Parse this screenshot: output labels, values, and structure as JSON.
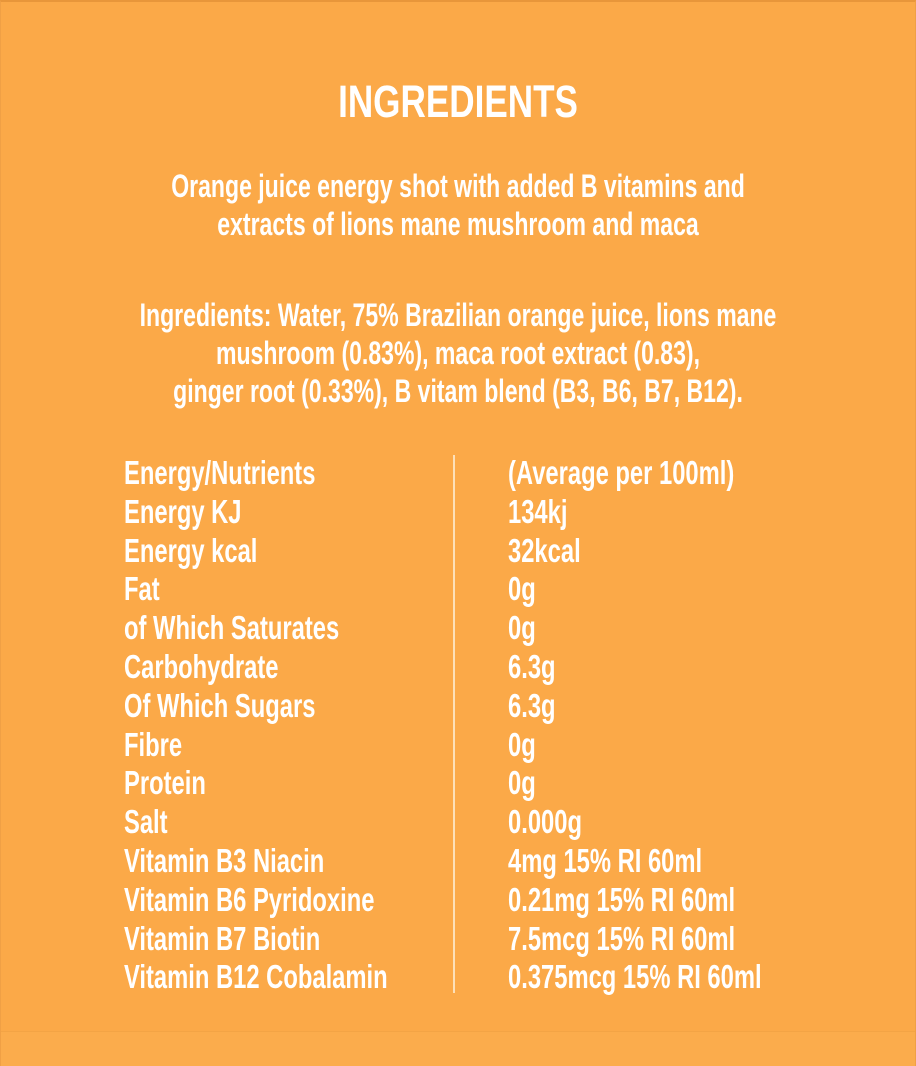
{
  "title": "INGREDIENTS",
  "description_lines": [
    "Orange juice energy shot with added B vitamins and",
    "extracts of lions mane mushroom and maca"
  ],
  "ingredients_lines": [
    "Ingredients: Water, 75% Brazilian orange juice, lions mane",
    "mushroom (0.83%), maca root extract (0.83),",
    "ginger root (0.33%), B vitam blend (B3, B6, B7, B12)."
  ],
  "nutrition": {
    "header": {
      "nutrient": "Energy/Nutrients",
      "value": "(Average per 100ml)"
    },
    "rows": [
      {
        "nutrient": "Energy KJ",
        "value": "134kj"
      },
      {
        "nutrient": "Energy kcal",
        "value": "32kcal"
      },
      {
        "nutrient": "Fat",
        "value": "0g"
      },
      {
        "nutrient": "of Which Saturates",
        "value": "0g"
      },
      {
        "nutrient": "Carbohydrate",
        "value": "6.3g"
      },
      {
        "nutrient": "Of Which Sugars",
        "value": "6.3g"
      },
      {
        "nutrient": "Fibre",
        "value": "0g"
      },
      {
        "nutrient": "Protein",
        "value": "0g"
      },
      {
        "nutrient": "Salt",
        "value": "0.000g"
      },
      {
        "nutrient": "Vitamin B3 Niacin",
        "value": "4mg 15% RI 60ml"
      },
      {
        "nutrient": "Vitamin B6 Pyridoxine",
        "value": "0.21mg 15% RI 60ml"
      },
      {
        "nutrient": "Vitamin B7 Biotin",
        "value": "7.5mcg 15% RI 60ml"
      },
      {
        "nutrient": "Vitamin B12 Cobalamin",
        "value": "0.375mcg 15% RI 60ml"
      }
    ]
  },
  "colors": {
    "background": "#fba948",
    "text": "#ffffff"
  }
}
